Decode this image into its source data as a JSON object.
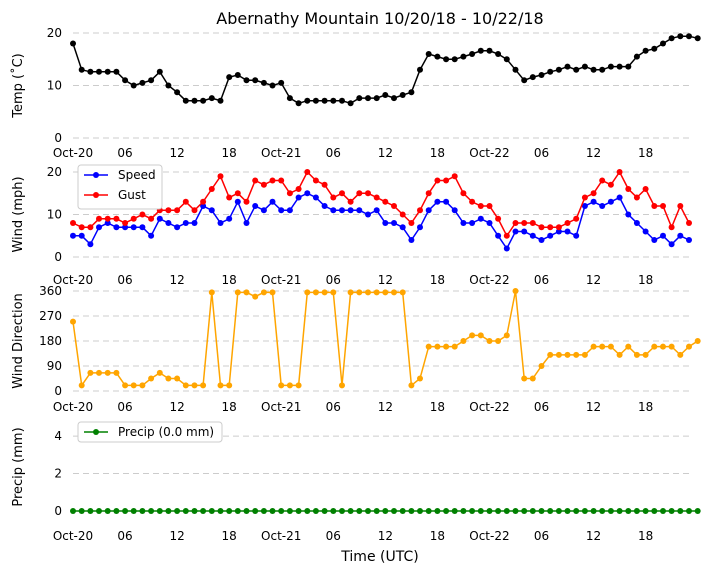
{
  "chart_data": {
    "title": "Abernathy Mountain 10/20/18 - 10/22/18",
    "xlabel": "Time (UTC)",
    "x_tick_labels": [
      "Oct-20",
      "06",
      "12",
      "18",
      "Oct-21",
      "06",
      "12",
      "18",
      "Oct-22",
      "06",
      "12",
      "18"
    ],
    "x_tick_hours": [
      0,
      6,
      12,
      18,
      24,
      30,
      36,
      42,
      48,
      54,
      60,
      66
    ],
    "x_range_hours": [
      0,
      71
    ],
    "panels": [
      {
        "id": "temp",
        "type": "line",
        "ylabel": "Temp (˚C)",
        "ylim": [
          0,
          20
        ],
        "yticks": [
          0,
          10,
          20
        ],
        "legend": false,
        "series": [
          {
            "name": "Temp",
            "color": "#000000",
            "values": [
              18,
              13,
              12.6,
              12.6,
              12.6,
              12.6,
              11,
              10,
              10.5,
              11,
              12.6,
              10,
              8.7,
              7.1,
              7.1,
              7.1,
              7.6,
              7.1,
              11.6,
              12,
              11,
              11,
              10.5,
              10,
              10.5,
              7.6,
              6.6,
              7.1,
              7.1,
              7.1,
              7.1,
              7.1,
              6.6,
              7.6,
              7.6,
              7.6,
              8.2,
              7.6,
              8.2,
              8.7,
              13,
              16,
              15.5,
              15,
              15,
              15.5,
              16,
              16.6,
              16.6,
              16,
              15,
              13,
              11,
              11.6,
              12,
              12.6,
              13,
              13.6,
              13,
              13.6,
              13,
              13,
              13.6,
              13.6,
              13.6,
              15.5,
              16.6,
              17,
              18,
              19,
              19.4,
              19.4,
              19
            ]
          }
        ]
      },
      {
        "id": "wind",
        "type": "line",
        "ylabel": "Wind (mph)",
        "ylim": [
          0,
          20
        ],
        "yticks": [
          0,
          10,
          20
        ],
        "legend": true,
        "series": [
          {
            "name": "Speed",
            "color": "#0000ff",
            "values": [
              5,
              5,
              3,
              7,
              8,
              7,
              7,
              7,
              7,
              5,
              9,
              8,
              7,
              8,
              8,
              12,
              11,
              8,
              9,
              13,
              8,
              12,
              11,
              13,
              11,
              11,
              14,
              15,
              14,
              12,
              11,
              11,
              11,
              11,
              10,
              11,
              8,
              8,
              7,
              4,
              7,
              11,
              13,
              13,
              11,
              8,
              8,
              9,
              8,
              5,
              2,
              6,
              6,
              5,
              4,
              5,
              6,
              6,
              5,
              12,
              13,
              12,
              13,
              14,
              10,
              8,
              6,
              4,
              5,
              3,
              5,
              4
            ]
          },
          {
            "name": "Gust",
            "color": "#ff0000",
            "values": [
              8,
              7,
              7,
              9,
              9,
              9,
              8,
              9,
              10,
              9,
              11,
              11,
              11,
              13,
              11,
              13,
              16,
              19,
              14,
              15,
              13,
              18,
              17,
              18,
              18,
              15,
              16,
              20,
              18,
              17,
              14,
              15,
              13,
              15,
              15,
              14,
              13,
              12,
              10,
              8,
              11,
              15,
              18,
              18,
              19,
              15,
              13,
              12,
              12,
              9,
              5,
              8,
              8,
              8,
              7,
              7,
              7,
              8,
              9,
              14,
              15,
              18,
              17,
              20,
              16,
              14,
              16,
              12,
              12,
              7,
              12,
              8
            ]
          }
        ]
      },
      {
        "id": "wdir",
        "type": "line",
        "ylabel": "Wind Direction",
        "ylim": [
          0,
          360
        ],
        "yticks": [
          0,
          90,
          180,
          270,
          360
        ],
        "legend": false,
        "series": [
          {
            "name": "Direction",
            "color": "#ffa500",
            "values": [
              250,
              20,
              65,
              65,
              65,
              65,
              20,
              20,
              20,
              45,
              65,
              45,
              45,
              20,
              20,
              20,
              355,
              20,
              20,
              355,
              355,
              340,
              355,
              355,
              20,
              20,
              20,
              355,
              355,
              355,
              355,
              20,
              355,
              355,
              355,
              355,
              355,
              355,
              355,
              20,
              45,
              160,
              160,
              160,
              160,
              180,
              200,
              200,
              180,
              180,
              200,
              360,
              45,
              45,
              90,
              130,
              130,
              130,
              130,
              130,
              160,
              160,
              160,
              130,
              160,
              130,
              130,
              160,
              160,
              160,
              130,
              160,
              180
            ]
          }
        ]
      },
      {
        "id": "precip",
        "type": "line",
        "ylabel": "Precip (mm)",
        "ylim": [
          0,
          4.7
        ],
        "yticks": [
          0,
          2,
          4
        ],
        "legend": true,
        "series": [
          {
            "name": "Precip (0.0 mm)",
            "color": "#008000",
            "values": [
              0,
              0,
              0,
              0,
              0,
              0,
              0,
              0,
              0,
              0,
              0,
              0,
              0,
              0,
              0,
              0,
              0,
              0,
              0,
              0,
              0,
              0,
              0,
              0,
              0,
              0,
              0,
              0,
              0,
              0,
              0,
              0,
              0,
              0,
              0,
              0,
              0,
              0,
              0,
              0,
              0,
              0,
              0,
              0,
              0,
              0,
              0,
              0,
              0,
              0,
              0,
              0,
              0,
              0,
              0,
              0,
              0,
              0,
              0,
              0,
              0,
              0,
              0,
              0,
              0,
              0,
              0,
              0,
              0,
              0,
              0,
              0,
              0
            ]
          }
        ]
      }
    ]
  }
}
